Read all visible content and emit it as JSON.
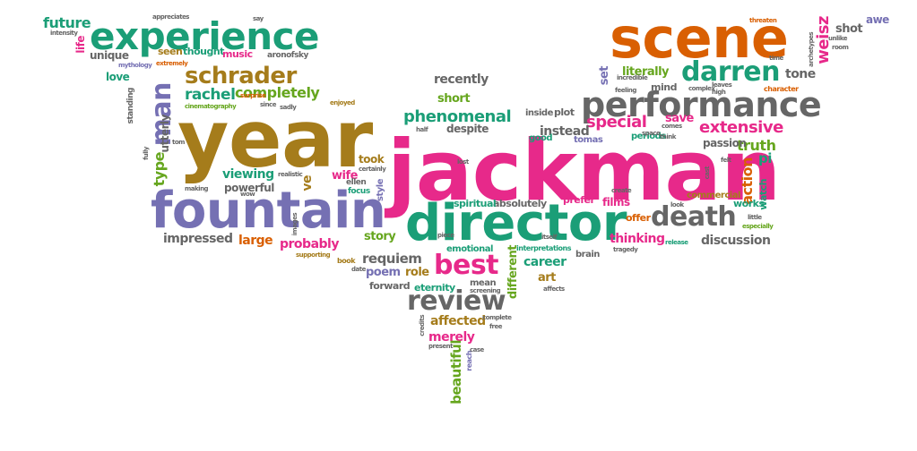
{
  "palette": {
    "gold": "#a57c1b",
    "magenta": "#e7298a",
    "teal": "#1b9e77",
    "orange": "#d95f02",
    "purple": "#7570b3",
    "gray": "#666666",
    "green": "#66a61e"
  },
  "words": [
    "jackman",
    "year",
    "fountain",
    "director",
    "scene",
    "experience",
    "performance",
    "darren",
    "death",
    "review",
    "best",
    "schrader",
    "man",
    "phenomenal",
    "extensive",
    "special",
    "truth",
    "rachel",
    "completely",
    "future",
    "shot",
    "awe",
    "tone",
    "weisz",
    "action",
    "pi",
    "instead",
    "viewing",
    "type",
    "wife",
    "love",
    "unique",
    "seen",
    "thought",
    "music",
    "recently",
    "short",
    "literally",
    "set",
    "save",
    "passion",
    "impressed",
    "large",
    "probably",
    "story",
    "thinking",
    "discussion",
    "career",
    "art",
    "requiem",
    "poem",
    "role",
    "affected",
    "merely",
    "beautiful",
    "different",
    "powerful",
    "took",
    "ve",
    "utterly",
    "films",
    "offer",
    "prefer",
    "works",
    "watch",
    "commercial",
    "forward",
    "eternity",
    "mean",
    "screening",
    "emotional",
    "brain",
    "interpretations",
    "absolutely",
    "spiritual",
    "plot",
    "inside",
    "good",
    "despite",
    "tomas",
    "periods",
    "mind",
    "character",
    "create",
    "look",
    "focus",
    "style",
    "ellen",
    "supporting",
    "book",
    "date",
    "reach",
    "case",
    "present",
    "credits",
    "free",
    "complete",
    "affects",
    "life",
    "intensity",
    "appreciates",
    "say",
    "aronofsky",
    "mythology",
    "extremely",
    "surprise",
    "cinematography",
    "since",
    "sadly",
    "enjoyed",
    "standing",
    "realistic",
    "certainly",
    "making",
    "wow",
    "images",
    "tragedy",
    "release",
    "little",
    "especially",
    "cast",
    "felt",
    "fully",
    "feeling",
    "incredible",
    "complex",
    "high",
    "time",
    "unlike",
    "room",
    "leaves",
    "archetypes",
    "threaten",
    "comes",
    "tom",
    "piece",
    "itself",
    "half",
    "lost",
    "space",
    "think"
  ]
}
